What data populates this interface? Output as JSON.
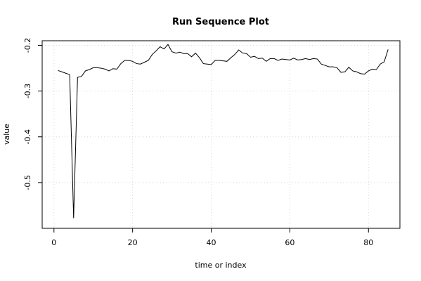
{
  "chart_data": {
    "type": "line",
    "title": "Run Sequence Plot",
    "xlabel": "time or index",
    "ylabel": "value",
    "xlim": [
      -3,
      88
    ],
    "ylim": [
      -0.6,
      -0.19
    ],
    "x_ticks": [
      0,
      20,
      40,
      60,
      80
    ],
    "y_ticks": [
      -0.5,
      -0.4,
      -0.3,
      -0.2
    ],
    "grid": true,
    "series": [
      {
        "x": [
          1,
          2,
          3,
          4,
          5,
          6,
          7,
          8,
          9,
          10,
          11,
          12,
          13,
          14,
          15,
          16,
          17,
          18,
          19,
          20,
          21,
          22,
          23,
          24,
          25,
          26,
          27,
          28,
          29,
          30,
          31,
          32,
          33,
          34,
          35,
          36,
          37,
          38,
          39,
          40,
          41,
          42,
          43,
          44,
          45,
          46,
          47,
          48,
          49,
          50,
          51,
          52,
          53,
          54,
          55,
          56,
          57,
          58,
          59,
          60,
          61,
          62,
          63,
          64,
          65,
          66,
          67,
          68,
          69,
          70,
          71,
          72,
          73,
          74,
          75,
          76,
          77,
          78,
          79,
          80,
          81,
          82,
          83,
          84,
          85
        ],
        "values": [
          -0.255,
          -0.258,
          -0.261,
          -0.264,
          -0.578,
          -0.27,
          -0.268,
          -0.256,
          -0.253,
          -0.249,
          -0.249,
          -0.25,
          -0.252,
          -0.256,
          -0.251,
          -0.252,
          -0.24,
          -0.233,
          -0.233,
          -0.235,
          -0.24,
          -0.241,
          -0.237,
          -0.233,
          -0.22,
          -0.212,
          -0.203,
          -0.208,
          -0.198,
          -0.214,
          -0.217,
          -0.215,
          -0.218,
          -0.218,
          -0.225,
          -0.217,
          -0.227,
          -0.24,
          -0.241,
          -0.242,
          -0.233,
          -0.233,
          -0.234,
          -0.235,
          -0.227,
          -0.22,
          -0.21,
          -0.217,
          -0.218,
          -0.226,
          -0.224,
          -0.229,
          -0.228,
          -0.235,
          -0.229,
          -0.229,
          -0.233,
          -0.23,
          -0.231,
          -0.232,
          -0.228,
          -0.232,
          -0.231,
          -0.229,
          -0.231,
          -0.229,
          -0.23,
          -0.241,
          -0.244,
          -0.247,
          -0.247,
          -0.249,
          -0.259,
          -0.258,
          -0.248,
          -0.256,
          -0.258,
          -0.262,
          -0.263,
          -0.256,
          -0.252,
          -0.253,
          -0.241,
          -0.236,
          -0.209
        ]
      }
    ]
  }
}
